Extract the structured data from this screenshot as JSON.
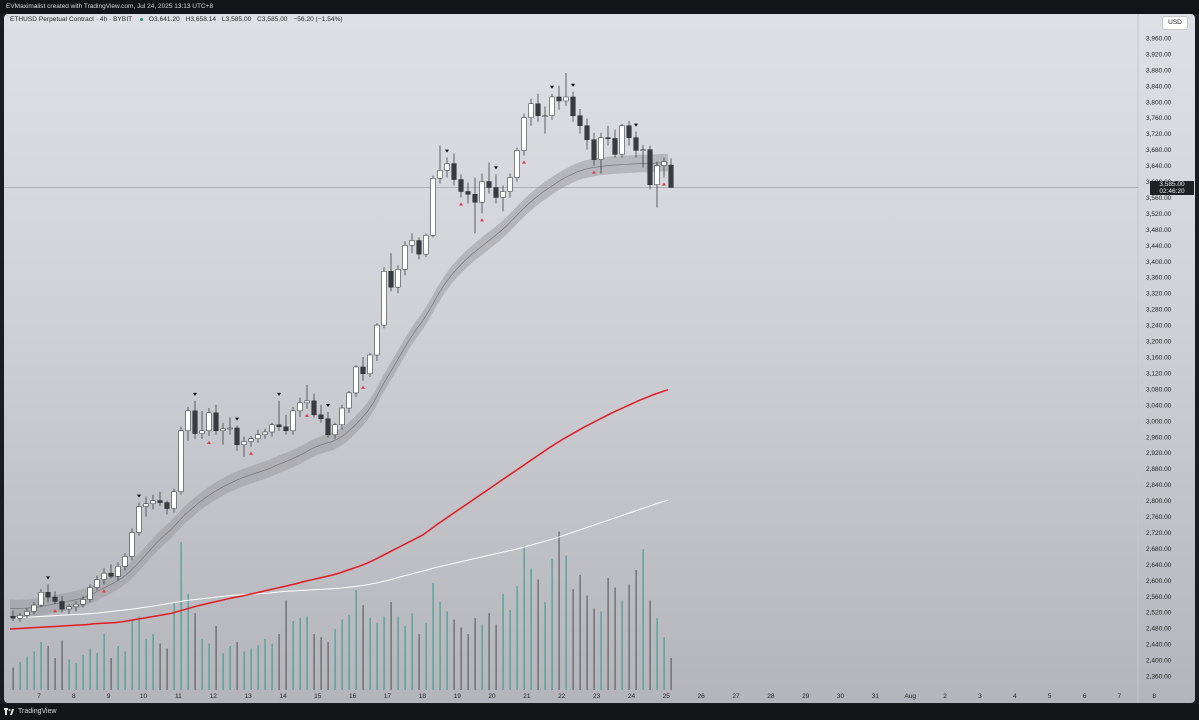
{
  "window": {
    "credit": "EVMaximalist created with TradingView.com, Jul 24, 2025 13:13 UTC+8",
    "footer_brand": "TradingView"
  },
  "legend": {
    "symbol": "ETHUSD Perpetual Contract · 4h · BYBIT",
    "open": "O3,641.20",
    "high": "H3,658.14",
    "low": "L3,585.00",
    "close": "C3,585.00",
    "change": "−56.20 (−1.54%)"
  },
  "currency_button": "USD",
  "last_price": {
    "value": "3,585.00",
    "countdown": "02:46:20"
  },
  "colors": {
    "background_top": "#dfe0e5",
    "background_bottom": "#b4b5ba",
    "up_candle": "#ffffff",
    "down_candle": "#3a3b40",
    "red_ma": "#e01b22",
    "white_ma": "#ffffff",
    "band": "#9a9ba0",
    "volume_up": "#3a9a8c",
    "volume_down": "#55565c",
    "marker_up": "#e0334a",
    "marker_down": "#111111"
  },
  "chart_data": {
    "type": "candlestick",
    "ylim": [
      2320,
      4000
    ],
    "y_ticks": [
      "3,960.00",
      "3,920.00",
      "3,880.00",
      "3,840.00",
      "3,800.00",
      "3,760.00",
      "3,720.00",
      "3,680.00",
      "3,640.00",
      "3,600.00",
      "3,560.00",
      "3,520.00",
      "3,480.00",
      "3,440.00",
      "3,400.00",
      "3,360.00",
      "3,320.00",
      "3,280.00",
      "3,240.00",
      "3,200.00",
      "3,160.00",
      "3,120.00",
      "3,080.00",
      "3,040.00",
      "3,000.00",
      "2,960.00",
      "2,920.00",
      "2,880.00",
      "2,840.00",
      "2,800.00",
      "2,760.00",
      "2,720.00",
      "2,680.00",
      "2,640.00",
      "2,600.00",
      "2,560.00",
      "2,520.00",
      "2,480.00",
      "2,440.00",
      "2,400.00",
      "2,360.00"
    ],
    "x_ticks": [
      "7",
      "8",
      "9",
      "10",
      "11",
      "12",
      "13",
      "14",
      "15",
      "16",
      "17",
      "18",
      "19",
      "20",
      "21",
      "22",
      "23",
      "24",
      "25",
      "26",
      "27",
      "28",
      "29",
      "30",
      "31",
      "Aug",
      "2",
      "3",
      "4",
      "5",
      "6",
      "7",
      "8"
    ],
    "candles": [
      [
        2510,
        2524,
        2498,
        2505
      ],
      [
        2505,
        2518,
        2496,
        2512
      ],
      [
        2512,
        2530,
        2505,
        2522
      ],
      [
        2522,
        2545,
        2515,
        2538
      ],
      [
        2538,
        2578,
        2533,
        2570
      ],
      [
        2570,
        2590,
        2545,
        2558
      ],
      [
        2558,
        2572,
        2540,
        2547
      ],
      [
        2547,
        2560,
        2520,
        2528
      ],
      [
        2528,
        2540,
        2516,
        2534
      ],
      [
        2534,
        2548,
        2522,
        2540
      ],
      [
        2540,
        2560,
        2532,
        2552
      ],
      [
        2552,
        2590,
        2545,
        2582
      ],
      [
        2582,
        2612,
        2575,
        2602
      ],
      [
        2602,
        2630,
        2590,
        2618
      ],
      [
        2618,
        2640,
        2605,
        2610
      ],
      [
        2610,
        2645,
        2600,
        2635
      ],
      [
        2635,
        2668,
        2625,
        2660
      ],
      [
        2660,
        2730,
        2650,
        2720
      ],
      [
        2720,
        2795,
        2712,
        2785
      ],
      [
        2785,
        2810,
        2760,
        2792
      ],
      [
        2792,
        2815,
        2778,
        2800
      ],
      [
        2800,
        2822,
        2786,
        2795
      ],
      [
        2795,
        2800,
        2765,
        2780
      ],
      [
        2780,
        2830,
        2770,
        2822
      ],
      [
        2822,
        2985,
        2815,
        2975
      ],
      [
        2975,
        3035,
        2950,
        3025
      ],
      [
        3025,
        3050,
        2955,
        2968
      ],
      [
        2968,
        3025,
        2955,
        2975
      ],
      [
        2975,
        3032,
        2962,
        3020
      ],
      [
        3020,
        3040,
        2965,
        2975
      ],
      [
        2975,
        2995,
        2940,
        2980
      ],
      [
        2980,
        3008,
        2965,
        2982
      ],
      [
        2982,
        2988,
        2925,
        2940
      ],
      [
        2940,
        2960,
        2910,
        2948
      ],
      [
        2948,
        2962,
        2935,
        2955
      ],
      [
        2955,
        2978,
        2945,
        2965
      ],
      [
        2965,
        2980,
        2955,
        2972
      ],
      [
        2972,
        2995,
        2960,
        2990
      ],
      [
        2990,
        3050,
        2975,
        2985
      ],
      [
        2985,
        3015,
        2965,
        2975
      ],
      [
        2975,
        3035,
        2965,
        3025
      ],
      [
        3025,
        3058,
        3010,
        3045
      ],
      [
        3045,
        3090,
        3030,
        3050
      ],
      [
        3050,
        3068,
        3008,
        3015
      ],
      [
        3015,
        3040,
        2995,
        3005
      ],
      [
        3005,
        3022,
        2958,
        2965
      ],
      [
        2965,
        2995,
        2955,
        2990
      ],
      [
        2990,
        3040,
        2978,
        3032
      ],
      [
        3032,
        3075,
        3020,
        3070
      ],
      [
        3070,
        3140,
        3060,
        3135
      ],
      [
        3135,
        3160,
        3100,
        3118
      ],
      [
        3118,
        3170,
        3110,
        3165
      ],
      [
        3165,
        3245,
        3150,
        3240
      ],
      [
        3240,
        3385,
        3232,
        3375
      ],
      [
        3375,
        3420,
        3325,
        3335
      ],
      [
        3335,
        3390,
        3320,
        3380
      ],
      [
        3380,
        3450,
        3365,
        3440
      ],
      [
        3440,
        3470,
        3420,
        3452
      ],
      [
        3452,
        3460,
        3405,
        3418
      ],
      [
        3418,
        3470,
        3410,
        3465
      ],
      [
        3465,
        3615,
        3460,
        3608
      ],
      [
        3608,
        3690,
        3595,
        3628
      ],
      [
        3628,
        3660,
        3610,
        3645
      ],
      [
        3645,
        3670,
        3590,
        3605
      ],
      [
        3605,
        3618,
        3560,
        3575
      ],
      [
        3575,
        3598,
        3545,
        3568
      ],
      [
        3568,
        3610,
        3470,
        3548
      ],
      [
        3548,
        3620,
        3520,
        3600
      ],
      [
        3600,
        3648,
        3570,
        3585
      ],
      [
        3585,
        3618,
        3545,
        3560
      ],
      [
        3560,
        3590,
        3525,
        3575
      ],
      [
        3575,
        3620,
        3560,
        3610
      ],
      [
        3610,
        3685,
        3600,
        3678
      ],
      [
        3678,
        3770,
        3665,
        3760
      ],
      [
        3760,
        3808,
        3740,
        3795
      ],
      [
        3795,
        3820,
        3750,
        3765
      ],
      [
        3765,
        3788,
        3720,
        3765
      ],
      [
        3765,
        3820,
        3755,
        3812
      ],
      [
        3812,
        3840,
        3780,
        3802
      ],
      [
        3802,
        3872,
        3790,
        3812
      ],
      [
        3812,
        3825,
        3750,
        3765
      ],
      [
        3765,
        3782,
        3720,
        3740
      ],
      [
        3740,
        3758,
        3680,
        3705
      ],
      [
        3705,
        3722,
        3640,
        3655
      ],
      [
        3655,
        3722,
        3620,
        3710
      ],
      [
        3710,
        3740,
        3690,
        3708
      ],
      [
        3708,
        3730,
        3660,
        3668
      ],
      [
        3668,
        3745,
        3660,
        3740
      ],
      [
        3740,
        3752,
        3690,
        3710
      ],
      [
        3710,
        3725,
        3660,
        3678
      ],
      [
        3678,
        3692,
        3635,
        3680
      ],
      [
        3680,
        3690,
        3580,
        3592
      ],
      [
        3592,
        3650,
        3535,
        3640
      ],
      [
        3640,
        3660,
        3610,
        3650
      ],
      [
        3641.2,
        3658.14,
        3585,
        3585
      ]
    ],
    "volume": [
      28,
      35,
      42,
      48,
      60,
      55,
      40,
      62,
      38,
      34,
      44,
      52,
      46,
      70,
      40,
      55,
      48,
      88,
      92,
      64,
      70,
      58,
      52,
      110,
      185,
      120,
      96,
      64,
      58,
      80,
      46,
      55,
      60,
      48,
      52,
      56,
      64,
      58,
      70,
      112,
      86,
      90,
      92,
      70,
      66,
      60,
      76,
      88,
      94,
      125,
      106,
      90,
      84,
      92,
      110,
      92,
      80,
      96,
      70,
      84,
      134,
      110,
      98,
      88,
      78,
      70,
      90,
      82,
      96,
      82,
      120,
      100,
      130,
      180,
      152,
      138,
      110,
      164,
      198,
      168,
      126,
      144,
      118,
      102,
      98,
      140,
      128,
      112,
      132,
      150,
      176,
      112,
      90,
      66,
      40
    ],
    "band_center": [
      2530,
      2529,
      2530,
      2531,
      2533,
      2536,
      2540,
      2543,
      2546,
      2550,
      2554,
      2560,
      2568,
      2577,
      2586,
      2595,
      2606,
      2620,
      2637,
      2656,
      2676,
      2695,
      2712,
      2727,
      2746,
      2765,
      2780,
      2795,
      2808,
      2820,
      2830,
      2840,
      2848,
      2856,
      2862,
      2868,
      2874,
      2880,
      2888,
      2895,
      2902,
      2910,
      2919,
      2929,
      2937,
      2943,
      2948,
      2956,
      2968,
      2984,
      3002,
      3022,
      3048,
      3082,
      3112,
      3142,
      3172,
      3202,
      3228,
      3252,
      3280,
      3312,
      3340,
      3364,
      3384,
      3402,
      3418,
      3432,
      3446,
      3460,
      3474,
      3490,
      3508,
      3526,
      3543,
      3558,
      3572,
      3584,
      3596,
      3607,
      3616,
      3624,
      3630,
      3634,
      3637,
      3639,
      3641,
      3642,
      3643,
      3644,
      3645,
      3645,
      3646,
      3647,
      3648
    ],
    "red_ma": [
      2478,
      2479,
      2480,
      2481,
      2482,
      2483,
      2484,
      2485,
      2486,
      2487,
      2488,
      2489,
      2491,
      2492,
      2493,
      2494,
      2496,
      2499,
      2502,
      2505,
      2508,
      2511,
      2514,
      2517,
      2522,
      2527,
      2532,
      2537,
      2541,
      2545,
      2549,
      2553,
      2557,
      2560,
      2564,
      2568,
      2572,
      2576,
      2580,
      2584,
      2588,
      2592,
      2597,
      2601,
      2605,
      2609,
      2613,
      2618,
      2624,
      2630,
      2636,
      2643,
      2651,
      2660,
      2669,
      2678,
      2687,
      2696,
      2705,
      2714,
      2727,
      2740,
      2752,
      2764,
      2776,
      2788,
      2800,
      2812,
      2824,
      2836,
      2848,
      2860,
      2872,
      2884,
      2896,
      2908,
      2920,
      2932,
      2943,
      2954,
      2964,
      2974,
      2984,
      2993,
      3002,
      3011,
      3020,
      3028,
      3036,
      3044,
      3052,
      3059,
      3066,
      3072,
      3078
    ],
    "white_ma": [
      2505,
      2506,
      2507,
      2508,
      2509,
      2510,
      2511,
      2512,
      2513,
      2514,
      2515,
      2516,
      2517,
      2519,
      2521,
      2523,
      2525,
      2527,
      2529,
      2532,
      2534,
      2537,
      2540,
      2543,
      2546,
      2549,
      2551,
      2553,
      2555,
      2557,
      2559,
      2561,
      2563,
      2564,
      2565,
      2566,
      2567,
      2568,
      2570,
      2572,
      2573,
      2574,
      2575,
      2576,
      2577,
      2578,
      2579,
      2580,
      2582,
      2584,
      2586,
      2589,
      2592,
      2596,
      2600,
      2605,
      2610,
      2614,
      2619,
      2623,
      2628,
      2633,
      2637,
      2641,
      2645,
      2649,
      2653,
      2657,
      2661,
      2665,
      2669,
      2673,
      2677,
      2681,
      2686,
      2691,
      2696,
      2701,
      2706,
      2712,
      2718,
      2724,
      2730,
      2736,
      2742,
      2748,
      2754,
      2760,
      2766,
      2772,
      2778,
      2784,
      2790,
      2796,
      2801
    ],
    "markers": [
      {
        "i": 5,
        "type": "down"
      },
      {
        "i": 6,
        "type": "up"
      },
      {
        "i": 13,
        "type": "up"
      },
      {
        "i": 18,
        "type": "down"
      },
      {
        "i": 26,
        "type": "down"
      },
      {
        "i": 28,
        "type": "up"
      },
      {
        "i": 32,
        "type": "down"
      },
      {
        "i": 34,
        "type": "up"
      },
      {
        "i": 38,
        "type": "down"
      },
      {
        "i": 42,
        "type": "up"
      },
      {
        "i": 45,
        "type": "down"
      },
      {
        "i": 50,
        "type": "up"
      },
      {
        "i": 62,
        "type": "down"
      },
      {
        "i": 64,
        "type": "up"
      },
      {
        "i": 67,
        "type": "up"
      },
      {
        "i": 69,
        "type": "down"
      },
      {
        "i": 73,
        "type": "up"
      },
      {
        "i": 77,
        "type": "down"
      },
      {
        "i": 80,
        "type": "down"
      },
      {
        "i": 83,
        "type": "up"
      },
      {
        "i": 89,
        "type": "down"
      },
      {
        "i": 93,
        "type": "up"
      }
    ]
  }
}
